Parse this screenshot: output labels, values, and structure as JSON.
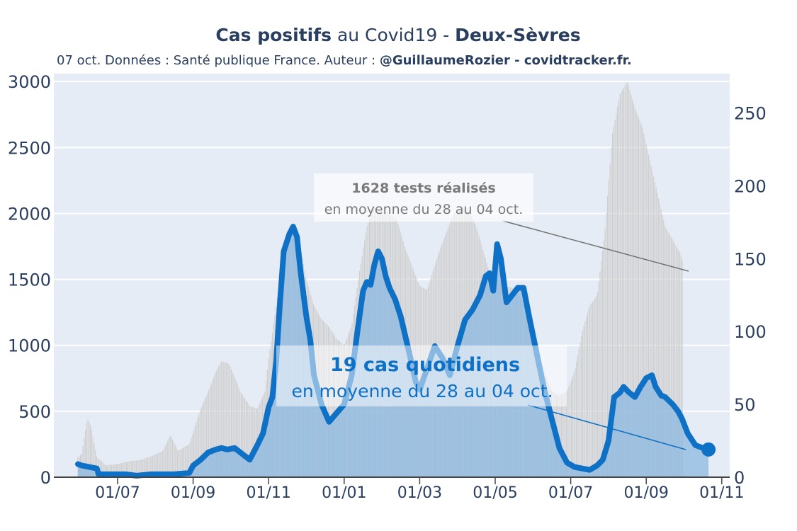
{
  "chart_data": {
    "type": "area",
    "title": {
      "part1_bold": "Cas positifs",
      "part2": " au Covid19 - ",
      "part3_bold": "Deux-Sèvres"
    },
    "subtitle": {
      "text": "07 oct. Données : Santé publique France. Auteur : ",
      "bold": "@GuillaumeRozier - covidtracker.fr."
    },
    "x_ticks": [
      "01/07",
      "01/09",
      "01/11",
      "01/01",
      "01/03",
      "01/05",
      "01/07",
      "01/09",
      "01/11"
    ],
    "x_range_months": [
      0,
      16.2
    ],
    "y_left_ticks": [
      0,
      500,
      1000,
      1500,
      2000,
      2500,
      3000
    ],
    "y_left_range": [
      0,
      3060
    ],
    "y_right_ticks": [
      0,
      50,
      100,
      150,
      200,
      250
    ],
    "y_right_range": [
      0,
      277
    ],
    "series": [
      {
        "name": "tests",
        "axis": "left",
        "color": "#d3d3d3",
        "points": [
          [
            -1.05,
            150
          ],
          [
            -0.95,
            180
          ],
          [
            -0.8,
            450
          ],
          [
            -0.7,
            380
          ],
          [
            -0.55,
            150
          ],
          [
            -0.3,
            90
          ],
          [
            0,
            100
          ],
          [
            0.3,
            120
          ],
          [
            0.6,
            130
          ],
          [
            0.9,
            160
          ],
          [
            1.2,
            200
          ],
          [
            1.4,
            320
          ],
          [
            1.6,
            200
          ],
          [
            1.9,
            250
          ],
          [
            2.0,
            340
          ],
          [
            2.2,
            520
          ],
          [
            2.4,
            650
          ],
          [
            2.6,
            800
          ],
          [
            2.75,
            880
          ],
          [
            2.95,
            860
          ],
          [
            3.1,
            760
          ],
          [
            3.25,
            650
          ],
          [
            3.5,
            540
          ],
          [
            3.7,
            520
          ],
          [
            3.9,
            650
          ],
          [
            4.0,
            900
          ],
          [
            4.2,
            1300
          ],
          [
            4.4,
            1700
          ],
          [
            4.55,
            1840
          ],
          [
            4.75,
            1860
          ],
          [
            4.9,
            1650
          ],
          [
            5.0,
            1500
          ],
          [
            5.2,
            1300
          ],
          [
            5.4,
            1200
          ],
          [
            5.6,
            1140
          ],
          [
            5.8,
            1050
          ],
          [
            6.0,
            1000
          ],
          [
            6.2,
            1150
          ],
          [
            6.4,
            1550
          ],
          [
            6.6,
            1900
          ],
          [
            6.8,
            2050
          ],
          [
            7.0,
            2020
          ],
          [
            7.2,
            2000
          ],
          [
            7.4,
            1950
          ],
          [
            7.6,
            1750
          ],
          [
            7.8,
            1600
          ],
          [
            8.0,
            1450
          ],
          [
            8.2,
            1420
          ],
          [
            8.5,
            1700
          ],
          [
            8.7,
            1850
          ],
          [
            8.9,
            2000
          ],
          [
            9.1,
            2050
          ],
          [
            9.3,
            2030
          ],
          [
            9.5,
            1900
          ],
          [
            9.7,
            1700
          ],
          [
            9.9,
            1500
          ],
          [
            10.1,
            1500
          ],
          [
            10.3,
            1450
          ],
          [
            10.5,
            1430
          ],
          [
            10.7,
            1350
          ],
          [
            10.9,
            1200
          ],
          [
            11.1,
            1000
          ],
          [
            11.3,
            800
          ],
          [
            11.5,
            650
          ],
          [
            11.7,
            620
          ],
          [
            11.9,
            650
          ],
          [
            12.1,
            800
          ],
          [
            12.3,
            1100
          ],
          [
            12.5,
            1300
          ],
          [
            12.7,
            1380
          ],
          [
            12.9,
            1850
          ],
          [
            13.1,
            2600
          ],
          [
            13.3,
            2900
          ],
          [
            13.5,
            3000
          ],
          [
            13.7,
            2800
          ],
          [
            13.9,
            2650
          ],
          [
            14.1,
            2400
          ],
          [
            14.3,
            2150
          ],
          [
            14.5,
            1900
          ],
          [
            14.7,
            1800
          ],
          [
            14.9,
            1700
          ],
          [
            14.97,
            1628
          ]
        ]
      },
      {
        "name": "cas",
        "axis": "right",
        "color": "#0f71c5",
        "points": [
          [
            -1.05,
            9
          ],
          [
            -0.95,
            8
          ],
          [
            -0.75,
            7
          ],
          [
            -0.55,
            6
          ],
          [
            -0.5,
            2
          ],
          [
            -0.3,
            2
          ],
          [
            0,
            2
          ],
          [
            0.2,
            2
          ],
          [
            0.5,
            1
          ],
          [
            0.9,
            2
          ],
          [
            1.2,
            2
          ],
          [
            1.5,
            2
          ],
          [
            1.9,
            3
          ],
          [
            2.0,
            8
          ],
          [
            2.2,
            12
          ],
          [
            2.4,
            17
          ],
          [
            2.6,
            19
          ],
          [
            2.75,
            20
          ],
          [
            2.9,
            19
          ],
          [
            3.1,
            20
          ],
          [
            3.3,
            16
          ],
          [
            3.5,
            12
          ],
          [
            3.7,
            22
          ],
          [
            3.85,
            30
          ],
          [
            4.0,
            48
          ],
          [
            4.1,
            55
          ],
          [
            4.2,
            80
          ],
          [
            4.3,
            120
          ],
          [
            4.4,
            155
          ],
          [
            4.55,
            167
          ],
          [
            4.65,
            172
          ],
          [
            4.75,
            165
          ],
          [
            4.85,
            140
          ],
          [
            5.0,
            110
          ],
          [
            5.1,
            95
          ],
          [
            5.2,
            70
          ],
          [
            5.4,
            50
          ],
          [
            5.6,
            38
          ],
          [
            5.8,
            44
          ],
          [
            6.0,
            50
          ],
          [
            6.2,
            70
          ],
          [
            6.35,
            100
          ],
          [
            6.5,
            128
          ],
          [
            6.6,
            134
          ],
          [
            6.7,
            132
          ],
          [
            6.8,
            146
          ],
          [
            6.9,
            155
          ],
          [
            7.0,
            150
          ],
          [
            7.1,
            138
          ],
          [
            7.2,
            130
          ],
          [
            7.35,
            122
          ],
          [
            7.5,
            110
          ],
          [
            7.7,
            88
          ],
          [
            7.9,
            65
          ],
          [
            8.0,
            60
          ],
          [
            8.2,
            75
          ],
          [
            8.4,
            90
          ],
          [
            8.6,
            82
          ],
          [
            8.8,
            70
          ],
          [
            9.0,
            90
          ],
          [
            9.2,
            108
          ],
          [
            9.4,
            115
          ],
          [
            9.6,
            125
          ],
          [
            9.75,
            138
          ],
          [
            9.85,
            140
          ],
          [
            9.95,
            128
          ],
          [
            10.05,
            160
          ],
          [
            10.15,
            150
          ],
          [
            10.3,
            120
          ],
          [
            10.45,
            125
          ],
          [
            10.6,
            130
          ],
          [
            10.75,
            130
          ],
          [
            10.9,
            110
          ],
          [
            11.1,
            85
          ],
          [
            11.3,
            60
          ],
          [
            11.5,
            40
          ],
          [
            11.7,
            20
          ],
          [
            11.9,
            10
          ],
          [
            12.1,
            7
          ],
          [
            12.3,
            6
          ],
          [
            12.5,
            5
          ],
          [
            12.7,
            8
          ],
          [
            12.85,
            12
          ],
          [
            13.0,
            25
          ],
          [
            13.15,
            55
          ],
          [
            13.3,
            58
          ],
          [
            13.4,
            62
          ],
          [
            13.55,
            58
          ],
          [
            13.7,
            55
          ],
          [
            13.85,
            62
          ],
          [
            14.0,
            68
          ],
          [
            14.15,
            70
          ],
          [
            14.25,
            62
          ],
          [
            14.4,
            56
          ],
          [
            14.5,
            55
          ],
          [
            14.7,
            50
          ],
          [
            14.85,
            45
          ],
          [
            14.95,
            40
          ],
          [
            15.1,
            30
          ],
          [
            15.3,
            22
          ],
          [
            15.5,
            20
          ],
          [
            15.65,
            19
          ]
        ]
      }
    ],
    "annotation_tests": {
      "value_text": "1628 tests réalisés",
      "period_text": "en moyenne du 28 au 04 oct."
    },
    "annotation_cas": {
      "value_text": "19 cas quotidiens",
      "period_text": "en moyenne du 28 au 04 oct."
    },
    "colors": {
      "plot_bg": "#e5ecf6",
      "cas_line": "#0f71c5",
      "cas_fill": "#8cb8e0",
      "tests_fill": "#d4d4d4",
      "title": "#2a3f5f"
    }
  }
}
